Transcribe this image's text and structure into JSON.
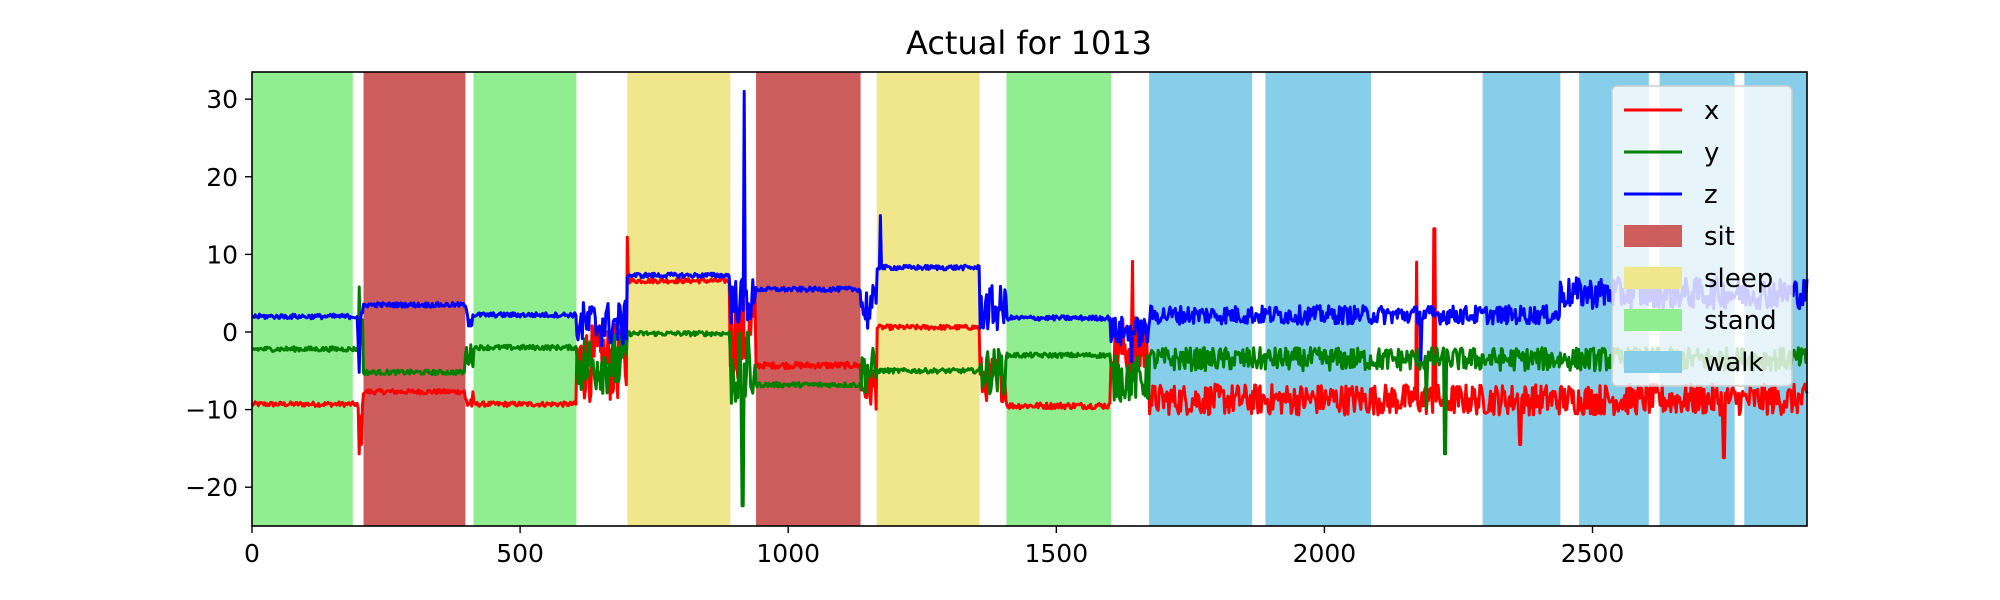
{
  "chart_data": {
    "type": "line",
    "title": "Actual for 1013",
    "xlabel": "",
    "ylabel": "",
    "xlim": [
      0,
      2900
    ],
    "ylim": [
      -25,
      33.5
    ],
    "x_ticks": [
      0,
      500,
      1000,
      1500,
      2000,
      2500
    ],
    "y_ticks": [
      -20,
      -10,
      0,
      10,
      20,
      30
    ],
    "grid": false,
    "legend_position": "upper right",
    "activity_colors": {
      "sit": "#cd5c5c",
      "sleep": "#f0e68c",
      "stand": "#90ee90",
      "walk": "#87ceeb"
    },
    "activity_spans": [
      {
        "activity": "stand",
        "start": 0,
        "end": 188
      },
      {
        "activity": "sit",
        "start": 208,
        "end": 398
      },
      {
        "activity": "stand",
        "start": 413,
        "end": 605
      },
      {
        "activity": "sleep",
        "start": 700,
        "end": 892
      },
      {
        "activity": "sit",
        "start": 940,
        "end": 1135
      },
      {
        "activity": "sleep",
        "start": 1165,
        "end": 1357
      },
      {
        "activity": "stand",
        "start": 1407,
        "end": 1602
      },
      {
        "activity": "walk",
        "start": 1673,
        "end": 1865
      },
      {
        "activity": "walk",
        "start": 1890,
        "end": 2087
      },
      {
        "activity": "walk",
        "start": 2295,
        "end": 2440
      },
      {
        "activity": "walk",
        "start": 2475,
        "end": 2605
      },
      {
        "activity": "walk",
        "start": 2625,
        "end": 2765
      },
      {
        "activity": "walk",
        "start": 2783,
        "end": 2900
      }
    ],
    "series": [
      {
        "name": "x",
        "color": "#ff0000",
        "segments": [
          {
            "start": 0,
            "end": 198,
            "mean": -9.3,
            "noise": 0.3
          },
          {
            "start": 198,
            "end": 208,
            "mean": -12,
            "noise": 3
          },
          {
            "start": 208,
            "end": 398,
            "mean": -7.7,
            "noise": 0.3
          },
          {
            "start": 398,
            "end": 413,
            "mean": -9,
            "noise": 1.5
          },
          {
            "start": 413,
            "end": 605,
            "mean": -9.3,
            "noise": 0.3
          },
          {
            "start": 605,
            "end": 700,
            "mean": -4,
            "noise": 5
          },
          {
            "start": 700,
            "end": 892,
            "mean": 6.6,
            "noise": 0.3
          },
          {
            "start": 892,
            "end": 940,
            "mean": 0,
            "noise": 6
          },
          {
            "start": 940,
            "end": 1135,
            "mean": -4.3,
            "noise": 0.4
          },
          {
            "start": 1135,
            "end": 1165,
            "mean": -7,
            "noise": 3
          },
          {
            "start": 1165,
            "end": 1357,
            "mean": 0.6,
            "noise": 0.3
          },
          {
            "start": 1357,
            "end": 1407,
            "mean": -6,
            "noise": 3
          },
          {
            "start": 1407,
            "end": 1602,
            "mean": -9.5,
            "noise": 0.4
          },
          {
            "start": 1602,
            "end": 1673,
            "mean": -2,
            "noise": 4
          },
          {
            "start": 1673,
            "end": 2900,
            "mean": -8.7,
            "noise": 2
          }
        ],
        "spikes": [
          {
            "x": 200,
            "y": -15.7
          },
          {
            "x": 700,
            "y": 12.2
          },
          {
            "x": 1642,
            "y": 9.1
          },
          {
            "x": 2172,
            "y": 9
          },
          {
            "x": 2205,
            "y": 13.3
          },
          {
            "x": 2365,
            "y": -14.5
          },
          {
            "x": 2745,
            "y": -16.2
          }
        ]
      },
      {
        "name": "y",
        "color": "#008000",
        "segments": [
          {
            "start": 0,
            "end": 198,
            "mean": -2.2,
            "noise": 0.3
          },
          {
            "start": 198,
            "end": 208,
            "mean": 0,
            "noise": 3
          },
          {
            "start": 208,
            "end": 398,
            "mean": -5.2,
            "noise": 0.3
          },
          {
            "start": 398,
            "end": 413,
            "mean": -3,
            "noise": 1.5
          },
          {
            "start": 413,
            "end": 605,
            "mean": -2,
            "noise": 0.3
          },
          {
            "start": 605,
            "end": 700,
            "mean": -4,
            "noise": 4
          },
          {
            "start": 700,
            "end": 892,
            "mean": -0.2,
            "noise": 0.3
          },
          {
            "start": 892,
            "end": 940,
            "mean": -5,
            "noise": 5
          },
          {
            "start": 940,
            "end": 1135,
            "mean": -6.8,
            "noise": 0.3
          },
          {
            "start": 1135,
            "end": 1165,
            "mean": -5,
            "noise": 3
          },
          {
            "start": 1165,
            "end": 1357,
            "mean": -5,
            "noise": 0.3
          },
          {
            "start": 1357,
            "end": 1407,
            "mean": -5,
            "noise": 3
          },
          {
            "start": 1407,
            "end": 1602,
            "mean": -3,
            "noise": 0.3
          },
          {
            "start": 1602,
            "end": 1673,
            "mean": -6,
            "noise": 3
          },
          {
            "start": 1673,
            "end": 2900,
            "mean": -3.5,
            "noise": 1.5
          }
        ],
        "spikes": [
          {
            "x": 200,
            "y": 5.8
          },
          {
            "x": 915,
            "y": -22.4
          },
          {
            "x": 2225,
            "y": -15.7
          },
          {
            "x": 2190,
            "y": -9.8
          }
        ]
      },
      {
        "name": "z",
        "color": "#0000ff",
        "segments": [
          {
            "start": 0,
            "end": 198,
            "mean": 2,
            "noise": 0.3
          },
          {
            "start": 198,
            "end": 208,
            "mean": 0,
            "noise": 3
          },
          {
            "start": 208,
            "end": 398,
            "mean": 3.5,
            "noise": 0.3
          },
          {
            "start": 398,
            "end": 413,
            "mean": 2,
            "noise": 1.5
          },
          {
            "start": 413,
            "end": 605,
            "mean": 2.2,
            "noise": 0.3
          },
          {
            "start": 605,
            "end": 700,
            "mean": 1,
            "noise": 3
          },
          {
            "start": 700,
            "end": 892,
            "mean": 7.3,
            "noise": 0.3
          },
          {
            "start": 892,
            "end": 940,
            "mean": 4,
            "noise": 3
          },
          {
            "start": 940,
            "end": 1135,
            "mean": 5.5,
            "noise": 0.3
          },
          {
            "start": 1135,
            "end": 1165,
            "mean": 3,
            "noise": 3
          },
          {
            "start": 1165,
            "end": 1357,
            "mean": 8.3,
            "noise": 0.3
          },
          {
            "start": 1357,
            "end": 1407,
            "mean": 3,
            "noise": 3
          },
          {
            "start": 1407,
            "end": 1602,
            "mean": 1.8,
            "noise": 0.3
          },
          {
            "start": 1602,
            "end": 1673,
            "mean": 0,
            "noise": 2
          },
          {
            "start": 1673,
            "end": 2440,
            "mean": 2.2,
            "noise": 1.2
          },
          {
            "start": 2440,
            "end": 2900,
            "mean": 5,
            "noise": 2
          }
        ],
        "spikes": [
          {
            "x": 200,
            "y": -5.2
          },
          {
            "x": 918,
            "y": 31
          },
          {
            "x": 1172,
            "y": 15
          },
          {
            "x": 1640,
            "y": -3.8
          },
          {
            "x": 2180,
            "y": -3.6
          }
        ]
      }
    ],
    "legend": [
      {
        "label": "x",
        "kind": "line",
        "color": "#ff0000"
      },
      {
        "label": "y",
        "kind": "line",
        "color": "#008000"
      },
      {
        "label": "z",
        "kind": "line",
        "color": "#0000ff"
      },
      {
        "label": "sit",
        "kind": "patch",
        "color": "#cd5c5c"
      },
      {
        "label": "sleep",
        "kind": "patch",
        "color": "#f0e68c"
      },
      {
        "label": "stand",
        "kind": "patch",
        "color": "#90ee90"
      },
      {
        "label": "walk",
        "kind": "patch",
        "color": "#87ceeb"
      }
    ]
  }
}
